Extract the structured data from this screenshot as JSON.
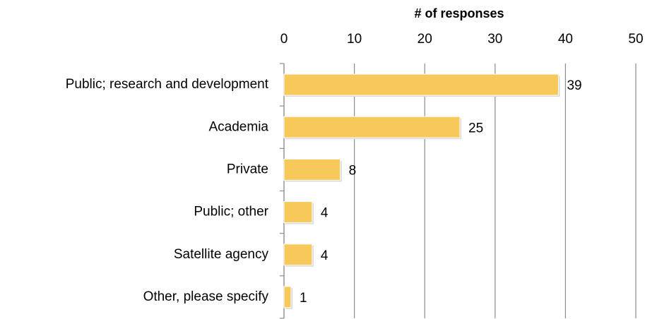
{
  "chart_data": {
    "type": "bar",
    "orientation": "horizontal",
    "x_axis_label": "# of responses",
    "categories": [
      "Public; research and development",
      "Academia",
      "Private",
      "Public; other",
      "Satellite agency",
      "Other, please specify"
    ],
    "values": [
      39,
      25,
      8,
      4,
      4,
      1
    ],
    "color": "#f7c95a",
    "xlim": [
      0,
      50
    ],
    "xticks": [
      0,
      10,
      20,
      30,
      40,
      50
    ],
    "grid": true
  }
}
